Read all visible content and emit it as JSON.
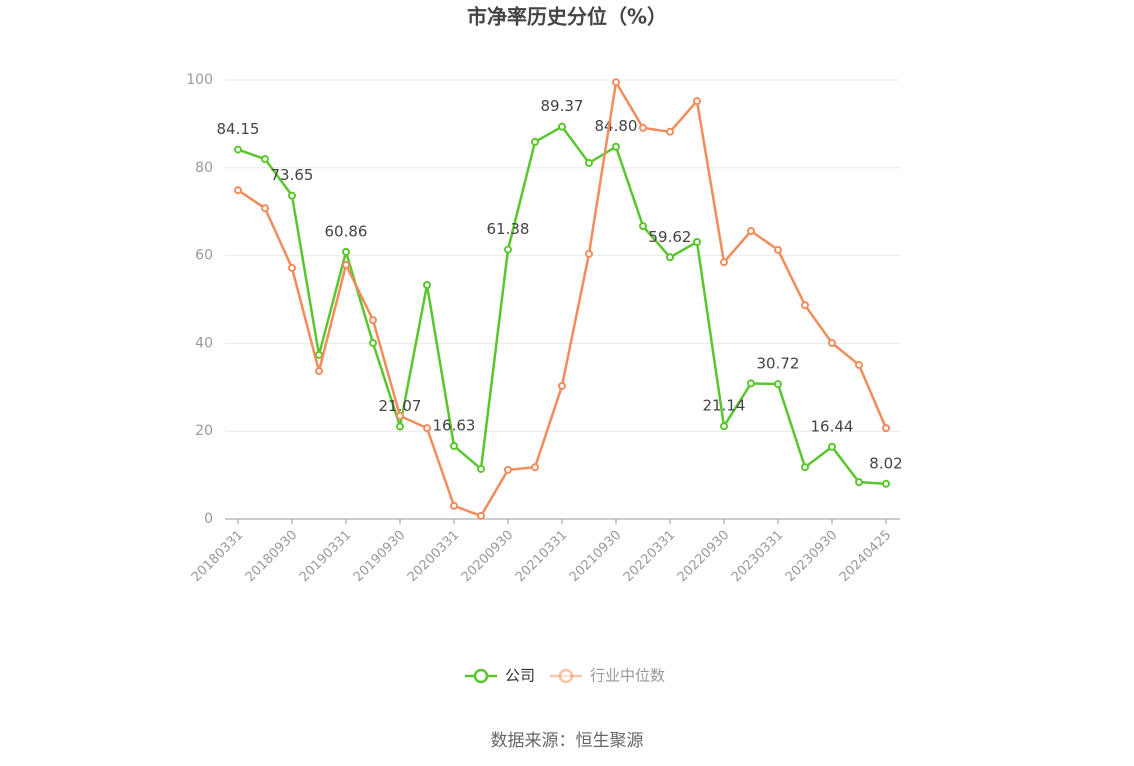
{
  "chart_data": {
    "type": "line",
    "title": "市净率历史分位（%）",
    "categories": [
      "20180331",
      null,
      "20180930",
      null,
      "20190331",
      null,
      "20190930",
      null,
      "20200331",
      null,
      "20200930",
      null,
      "20210331",
      null,
      "20210930",
      null,
      "20220331",
      null,
      "20220930",
      null,
      "20230331",
      null,
      "20230930",
      null,
      "20240425"
    ],
    "series": [
      {
        "name": "公司",
        "color": "#5ac62d",
        "values": [
          84.15,
          82.0,
          73.65,
          37.4,
          60.86,
          40.1,
          21.07,
          53.3,
          16.63,
          11.4,
          61.38,
          85.9,
          89.37,
          81.1,
          84.8,
          66.7,
          59.62,
          63.1,
          21.14,
          30.9,
          30.72,
          11.8,
          16.44,
          8.4,
          8.02
        ],
        "value_labels": [
          "84.15",
          null,
          "73.65",
          null,
          "60.86",
          null,
          "21.07",
          null,
          "16.63",
          null,
          "61.38",
          null,
          "89.37",
          null,
          "84.80",
          null,
          "59.62",
          null,
          "21.14",
          null,
          "30.72",
          null,
          "16.44",
          null,
          "8.02"
        ]
      },
      {
        "name": "行业中位数",
        "color": "#f28c5c",
        "values": [
          74.9,
          70.8,
          57.2,
          33.7,
          57.9,
          45.3,
          23.5,
          20.7,
          3.0,
          0.7,
          11.2,
          11.8,
          30.3,
          60.4,
          99.5,
          89.1,
          88.2,
          95.2,
          58.5,
          65.6,
          61.3,
          48.7,
          40.1,
          35.1,
          20.7
        ]
      }
    ],
    "ylim": [
      0,
      100
    ],
    "yticks": [
      0,
      20,
      40,
      60,
      80,
      100
    ],
    "grid": true,
    "source": "数据来源：恒生聚源"
  }
}
